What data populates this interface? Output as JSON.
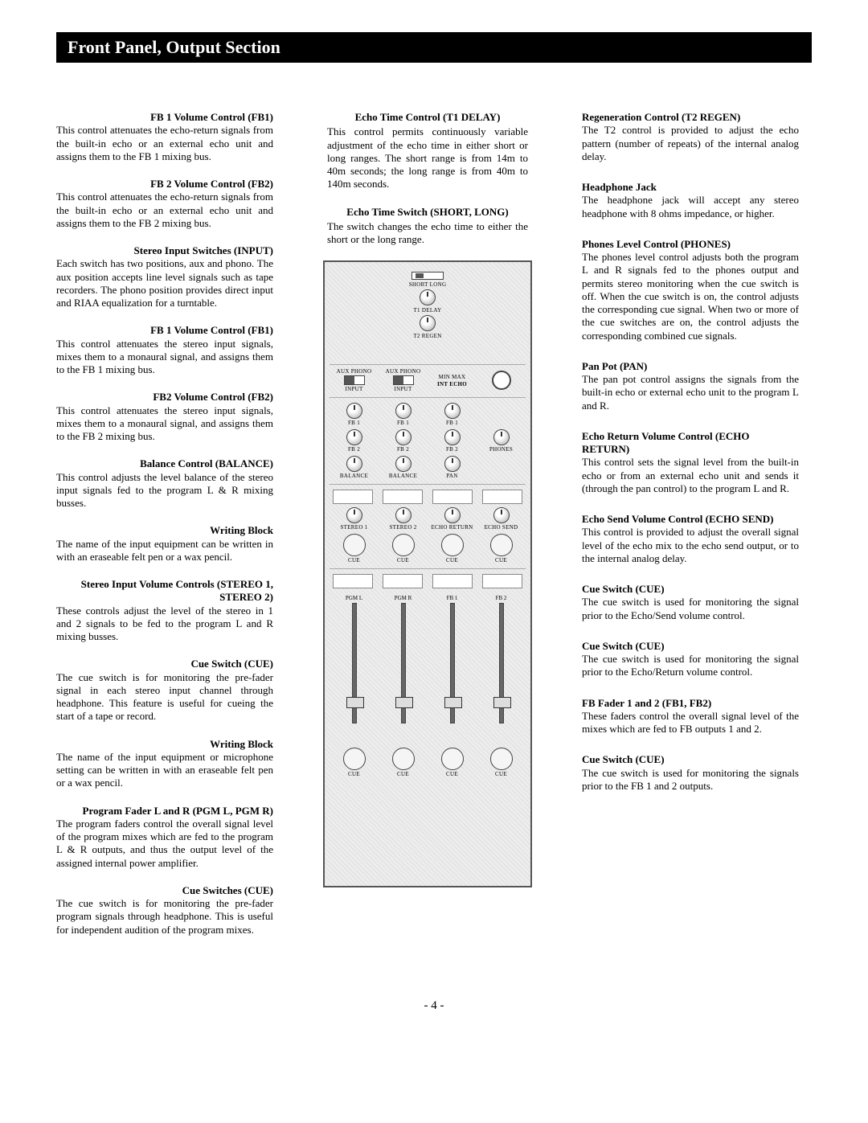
{
  "header": {
    "title": "Front Panel, Output Section"
  },
  "colors": {
    "page_bg": "#ffffff",
    "header_bg": "#000000",
    "header_fg": "#ffffff",
    "text": "#000000",
    "panel_bg": "#eeeeee",
    "panel_border": "#555555",
    "knob_border": "#444444"
  },
  "page_number": "- 4 -",
  "center": {
    "echo_time": {
      "title": "Echo Time Control (T1 DELAY)",
      "body": "This control permits continuously variable adjustment of the echo time in either short or long ranges. The short range is from 14m to 40m seconds; the long range is from 40m to 140m seconds."
    },
    "echo_switch": {
      "title": "Echo Time Switch (SHORT, LONG)",
      "body": "The switch changes the echo time to either the short or the long range."
    }
  },
  "panel": {
    "short_long": "SHORT    LONG",
    "t1": "T1 DELAY",
    "t2": "T2 REGEN",
    "min_max": "MIN        MAX",
    "int_echo": "INT ECHO",
    "input_switch_left": "AUX   PHONO",
    "input_switch_right": "AUX   PHONO",
    "input_label": "INPUT",
    "fb1": "FB 1",
    "fb2": "FB 2",
    "balance": "BALANCE",
    "pan": "PAN",
    "phones": "PHONES",
    "stereo1": "STEREO 1",
    "stereo2": "STEREO 2",
    "echo_return": "ECHO RETURN",
    "echo_send": "ECHO SEND",
    "cue": "CUE",
    "pgml": "PGM L",
    "pgmr": "PGM R",
    "fb1f": "FB 1",
    "fb2f": "FB 2"
  },
  "left": [
    {
      "title": "FB 1 Volume Control (FB1)",
      "body": "This control attenuates the echo-return signals from the built-in echo or an external echo unit and assigns them to the FB 1 mixing bus."
    },
    {
      "title": "FB 2 Volume Control (FB2)",
      "body": "This control attenuates the echo-return signals from the built-in echo or an external echo unit and assigns them to the FB 2 mixing bus."
    },
    {
      "title": "Stereo Input Switches (INPUT)",
      "body": "Each switch has two positions, aux and phono. The aux position accepts line level signals such as tape recorders. The phono position provides direct input and RIAA equalization for a turntable."
    },
    {
      "title": "FB 1 Volume Control (FB1)",
      "body": "This control attenuates the stereo input signals, mixes them to a monaural signal, and assigns them to the FB 1 mixing bus."
    },
    {
      "title": "FB2 Volume Control (FB2)",
      "body": "This control attenuates the stereo input signals, mixes them to a monaural signal, and assigns them to the FB 2 mixing bus."
    },
    {
      "title": "Balance Control (BALANCE)",
      "body": "This control adjusts the level balance of the stereo input signals fed to the program L & R mixing busses."
    },
    {
      "title": "Writing Block",
      "body": "The name of the input equipment can be written in with an eraseable felt pen or a wax pencil."
    },
    {
      "title": "Stereo Input Volume Controls (STEREO 1, STEREO 2)",
      "body": "These controls adjust the level of the stereo in 1 and 2 signals to be fed to the program L and R mixing busses."
    },
    {
      "title": "Cue Switch (CUE)",
      "body": "The cue switch is for monitoring the pre-fader signal in each stereo input channel through headphone. This feature is useful for cueing the start of a tape or record."
    },
    {
      "title": "Writing Block",
      "body": "The name of the input equipment or microphone setting can be written in with an eraseable felt pen or a wax pencil."
    },
    {
      "title": "Program Fader L and R (PGM L, PGM R)",
      "body": "The program faders control the overall signal level of the program mixes which are fed to the program L & R outputs, and thus the output level of the assigned internal power amplifier."
    },
    {
      "title": "Cue Switches (CUE)",
      "body": "The cue switch is for monitoring the pre-fader program signals through headphone. This is useful for independent audition of the program mixes."
    }
  ],
  "right": [
    {
      "title": "Regeneration Control (T2 REGEN)",
      "body": "The T2 control is provided to adjust the echo pattern (number of repeats) of the internal analog delay."
    },
    {
      "title": "Headphone Jack",
      "body": "The headphone jack will accept any stereo headphone with 8 ohms impedance, or higher."
    },
    {
      "title": "Phones Level Control (PHONES)",
      "body": "The phones level control adjusts both the program L and R signals fed to the phones output and permits stereo monitoring when the cue switch is off. When the cue switch is on, the control adjusts the corresponding cue signal. When two or more of the cue switches are on, the control adjusts the corresponding combined cue signals."
    },
    {
      "title": "Pan Pot (PAN)",
      "body": "The pan pot control assigns the signals from the built-in echo or external echo unit to the program L and R."
    },
    {
      "title": "Echo Return Volume Control (ECHO RETURN)",
      "body": "This control sets the signal level from the built-in echo or from an external echo unit and sends it (through the pan control) to the program L and R."
    },
    {
      "title": "Echo Send Volume Control (ECHO SEND)",
      "body": "This control is provided to adjust the overall signal level of the echo mix to the echo send output, or to the internal analog delay."
    },
    {
      "title": "Cue Switch (CUE)",
      "body": "The cue switch is used for monitoring the signal prior to the Echo/Send volume control."
    },
    {
      "title": "Cue Switch (CUE)",
      "body": "The cue switch is used for monitoring the signal prior to the Echo/Return volume control."
    },
    {
      "title": "FB Fader 1 and 2 (FB1, FB2)",
      "body": "These faders control the overall signal level of the mixes which are fed to FB outputs 1 and 2."
    },
    {
      "title": "Cue Switch (CUE)",
      "body": "The cue switch is used for monitoring the signals prior to the FB 1 and 2 outputs."
    }
  ]
}
